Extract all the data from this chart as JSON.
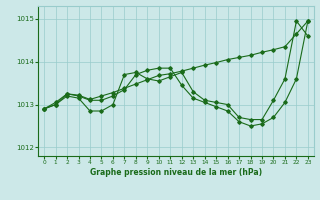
{
  "xlabel": "Graphe pression niveau de la mer (hPa)",
  "xlim": [
    -0.5,
    23.5
  ],
  "ylim": [
    1011.8,
    1015.3
  ],
  "yticks": [
    1012,
    1013,
    1014,
    1015
  ],
  "xticks": [
    0,
    1,
    2,
    3,
    4,
    5,
    6,
    7,
    8,
    9,
    10,
    11,
    12,
    13,
    14,
    15,
    16,
    17,
    18,
    19,
    20,
    21,
    22,
    23
  ],
  "bg_color": "#cce8e8",
  "grid_color": "#99cccc",
  "line_color": "#1a6b1a",
  "lines": [
    [
      1012.9,
      1013.0,
      1013.25,
      1013.2,
      1013.1,
      1013.1,
      1013.2,
      1013.35,
      1013.7,
      1013.8,
      1013.85,
      1013.85,
      1013.45,
      1013.15,
      1013.05,
      1012.95,
      1012.85,
      1012.6,
      1012.5,
      1012.55,
      1012.7,
      1013.05,
      1013.6,
      1014.95
    ],
    [
      1012.9,
      1013.0,
      1013.2,
      1013.15,
      1012.85,
      1012.85,
      1013.0,
      1013.7,
      1013.75,
      1013.6,
      1013.55,
      1013.65,
      1013.75,
      1013.3,
      1013.1,
      1013.05,
      1013.0,
      1012.7,
      1012.65,
      1012.65,
      1013.1,
      1013.6,
      1014.95,
      1014.6
    ],
    [
      1012.9,
      1013.05,
      1013.25,
      1013.22,
      1013.12,
      1013.2,
      1013.28,
      1013.38,
      1013.48,
      1013.58,
      1013.68,
      1013.72,
      1013.78,
      1013.85,
      1013.92,
      1013.98,
      1014.05,
      1014.1,
      1014.15,
      1014.22,
      1014.28,
      1014.35,
      1014.65,
      1014.95
    ]
  ]
}
